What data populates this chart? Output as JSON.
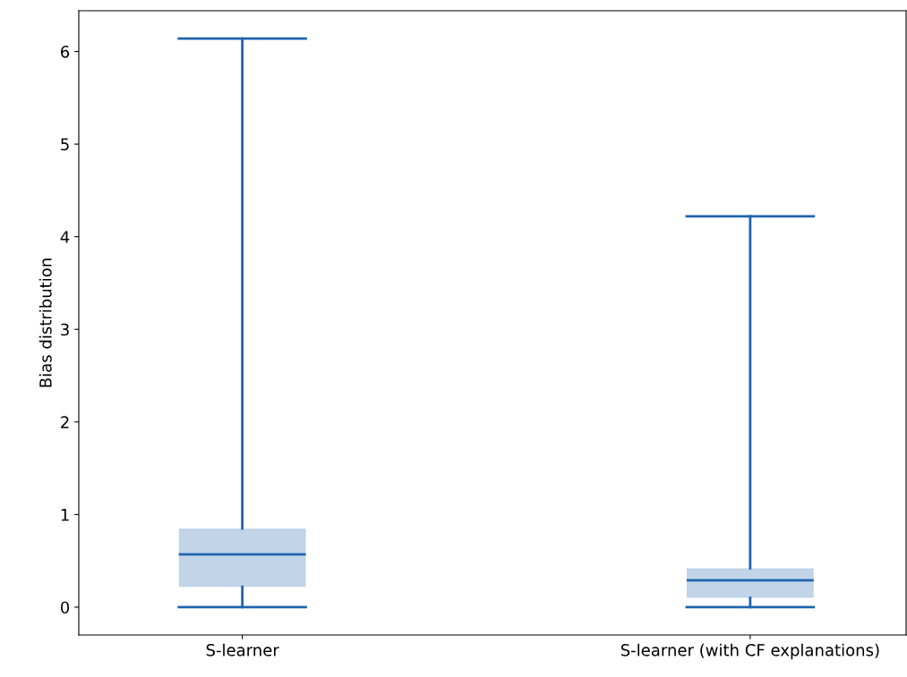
{
  "chart_data": {
    "type": "box",
    "ylabel": "Bias distribution",
    "categories": [
      "S-learner",
      "S-learner (with CF explanations)"
    ],
    "ylim": [
      -0.3,
      6.44
    ],
    "yticks": [
      0,
      1,
      2,
      3,
      4,
      5,
      6
    ],
    "grid": false,
    "series": [
      {
        "color": "#1f64ad",
        "boxes": [
          {
            "low": 0,
            "q1": 0.22,
            "median": 0.57,
            "q3": 0.85,
            "high": 6.14
          },
          {
            "low": 0,
            "q1": 0.1,
            "median": 0.29,
            "q3": 0.42,
            "high": 4.22
          }
        ]
      }
    ]
  }
}
